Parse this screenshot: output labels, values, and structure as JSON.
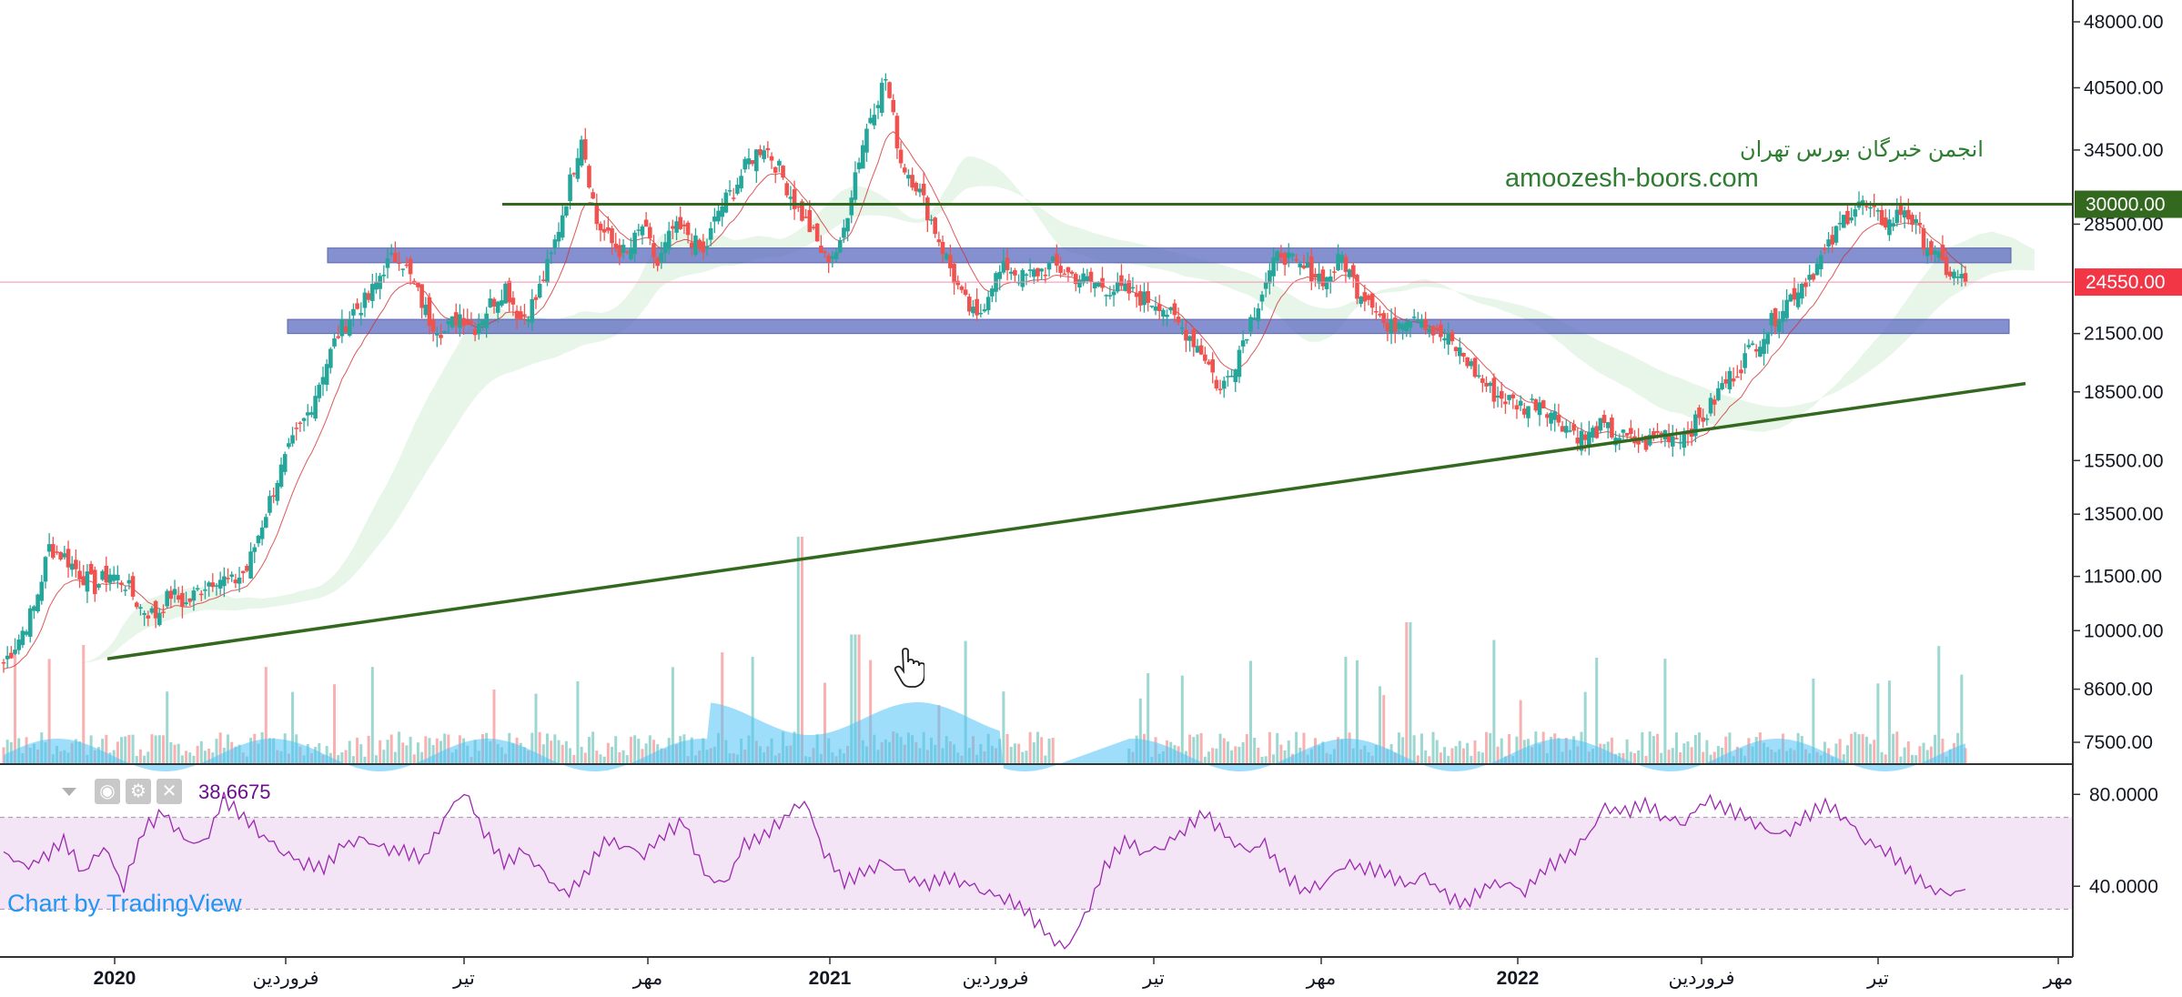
{
  "watermark": {
    "line1": "انجمن خبرگان بورس تهران",
    "line2": "amoozesh-boors.com"
  },
  "rsi_panel": {
    "value": "38.6675",
    "attribution": "Chart by TradingView",
    "icons": [
      "collapse-caret-icon",
      "eye-icon",
      "gear-icon",
      "close-icon"
    ]
  },
  "colors": {
    "up": "#26a69a",
    "down": "#ef5350",
    "support_resistance_zone": "#5c6bc0",
    "trendline": "#33691e",
    "rsi_line": "#9c27b0",
    "rsi_band": "#f3e5f5",
    "last_price": "#f23645",
    "resistance_label": "#33691e",
    "watermark": "#2e7d32",
    "volume_ma": "#4fc3f7"
  },
  "chart_data": [
    {
      "type": "candlestick",
      "scale": "log",
      "y_ticks": [
        "48000.00",
        "40500.00",
        "34500.00",
        "28500.00",
        "21500.00",
        "18500.00",
        "15500.00",
        "13500.00",
        "11500.00",
        "10000.00",
        "8600.00",
        "7500.00"
      ],
      "x_ticks": [
        "2020",
        "فروردین",
        "تیر",
        "مهر",
        "2021",
        "فروردین",
        "تیر",
        "مهر",
        "2022",
        "فروردین",
        "تیر",
        "مهر"
      ],
      "price_labels": [
        {
          "text": "30000.00",
          "value": 30000,
          "kind": "horizontal-resistance"
        },
        {
          "text": "24550.00",
          "value": 24550,
          "kind": "last-price"
        }
      ],
      "zones": [
        {
          "name": "upper-zone",
          "from": 25800,
          "to": 26800
        },
        {
          "name": "lower-zone",
          "from": 21500,
          "to": 22300
        }
      ],
      "trendline": {
        "from": {
          "x": "2020-01",
          "y": 9300
        },
        "to": {
          "x": "2022-10",
          "y": 18900
        }
      },
      "close_path": [
        9200,
        9800,
        10600,
        12400,
        12100,
        11600,
        11200,
        11600,
        11300,
        10600,
        10400,
        11000,
        10700,
        11200,
        11500,
        11300,
        11700,
        13200,
        14800,
        16200,
        17500,
        19500,
        21500,
        22800,
        23500,
        25500,
        26400,
        24300,
        22300,
        21600,
        22600,
        21900,
        23200,
        24300,
        22300,
        23500,
        26200,
        30500,
        36000,
        28600,
        27100,
        26300,
        28400,
        25600,
        28100,
        27800,
        26300,
        29500,
        31200,
        33500,
        35000,
        32800,
        30100,
        28200,
        26100,
        26800,
        32600,
        37800,
        41500,
        33500,
        31600,
        28800,
        26100,
        23600,
        22200,
        24600,
        25600,
        24800,
        25200,
        25600,
        25100,
        24700,
        24400,
        24100,
        23900,
        23500,
        23300,
        22200,
        21400,
        20300,
        18500,
        20100,
        22300,
        24600,
        26600,
        25500,
        25200,
        24700,
        26200,
        24100,
        23500,
        21600,
        22500,
        22700,
        21600,
        21100,
        20300,
        19200,
        18400,
        18100,
        17800,
        18100,
        17400,
        16800,
        16400,
        16900,
        16600,
        16300,
        16200,
        16700,
        16500,
        16900,
        17500,
        18800,
        19600,
        20800,
        21800,
        23100,
        24200,
        25300,
        26800,
        28900,
        30200,
        29100,
        28600,
        29700,
        27800,
        26200,
        25100,
        24550
      ],
      "annotations": [
        "30000.00 resistance",
        "24550.00 last"
      ]
    },
    {
      "type": "bar",
      "name": "Volume",
      "note": "relative volume bars with moving average area",
      "spikes": [
        {
          "x": "2020-10",
          "v": 1.0
        },
        {
          "x": "2020-11",
          "v": 0.75
        },
        {
          "x": "2021-09",
          "v": 0.78
        }
      ]
    },
    {
      "type": "line",
      "name": "RSI",
      "y_ticks": [
        "80.0000",
        "40.0000"
      ],
      "ylim": [
        10,
        90
      ],
      "band": [
        30,
        70
      ],
      "values": [
        55,
        48,
        52,
        60,
        46,
        58,
        40,
        65,
        72,
        60,
        58,
        78,
        70,
        62,
        55,
        50,
        48,
        58,
        60,
        56,
        55,
        52,
        70,
        82,
        64,
        50,
        55,
        45,
        36,
        44,
        60,
        58,
        54,
        63,
        68,
        45,
        40,
        58,
        62,
        70,
        78,
        55,
        42,
        46,
        50,
        45,
        40,
        44,
        42,
        38,
        35,
        30,
        20,
        12,
        26,
        48,
        60,
        55,
        58,
        65,
        72,
        62,
        55,
        58,
        45,
        38,
        42,
        50,
        48,
        46,
        40,
        44,
        36,
        32,
        40,
        42,
        38,
        48,
        52,
        60,
        74,
        72,
        76,
        70,
        68,
        78,
        74,
        70,
        64,
        62,
        70,
        76,
        70,
        60,
        56,
        48,
        40,
        36,
        38.6675
      ]
    }
  ]
}
